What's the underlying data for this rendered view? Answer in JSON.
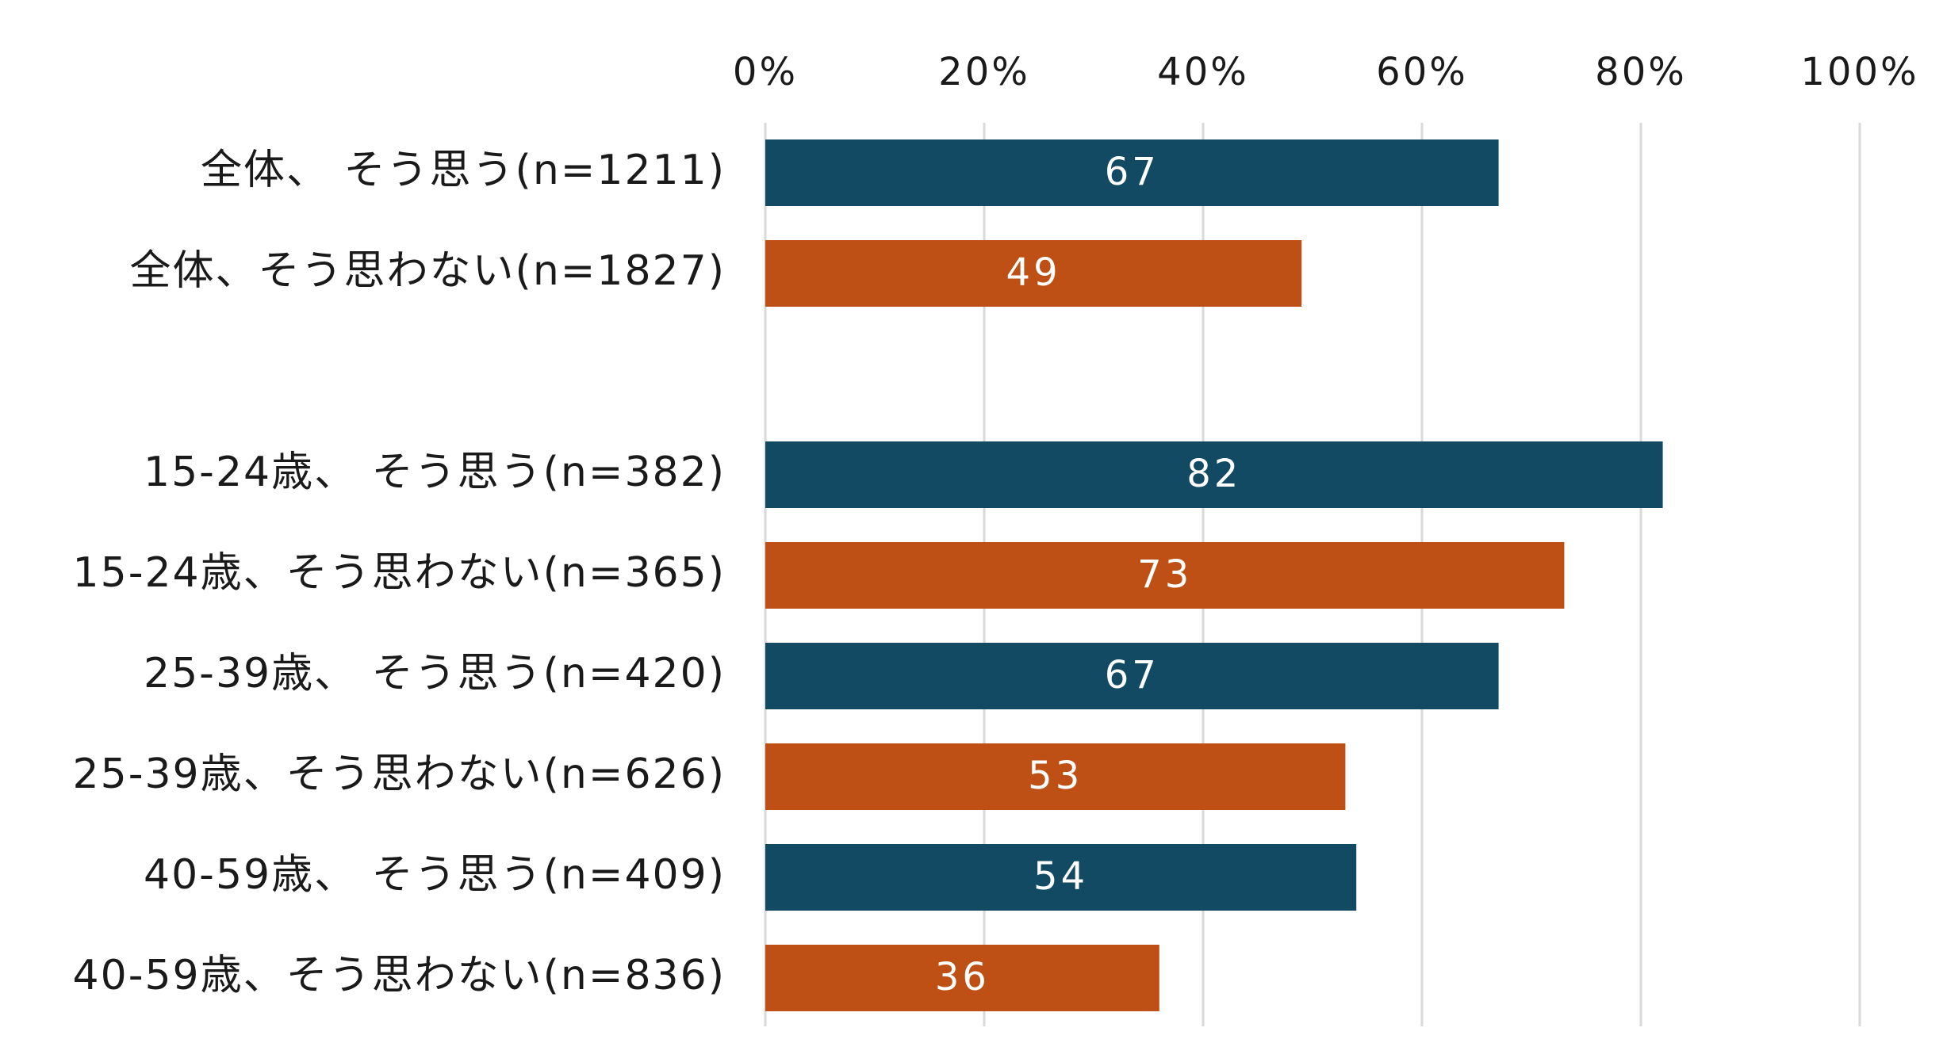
{
  "chart_data": {
    "type": "bar",
    "orientation": "horizontal",
    "xlim": [
      0,
      100
    ],
    "ticks": [
      "0%",
      "20%",
      "40%",
      "60%",
      "80%",
      "100%"
    ],
    "grid": true,
    "legend": "none",
    "colors": {
      "agree": "#134a63",
      "disagree": "#bf5015"
    },
    "bars": [
      {
        "label": "全体、 そう思う(n=1211)",
        "value": 67,
        "group": "agree"
      },
      {
        "label": "全体、そう思わない(n=1827)",
        "value": 49,
        "group": "disagree"
      },
      {
        "label": "",
        "value": null,
        "group": "gap"
      },
      {
        "label": "15-24歳、 そう思う(n=382)",
        "value": 82,
        "group": "agree"
      },
      {
        "label": "15-24歳、そう思わない(n=365)",
        "value": 73,
        "group": "disagree"
      },
      {
        "label": "25-39歳、 そう思う(n=420)",
        "value": 67,
        "group": "agree"
      },
      {
        "label": "25-39歳、そう思わない(n=626)",
        "value": 53,
        "group": "disagree"
      },
      {
        "label": "40-59歳、 そう思う(n=409)",
        "value": 54,
        "group": "agree"
      },
      {
        "label": "40-59歳、そう思わない(n=836)",
        "value": 36,
        "group": "disagree"
      }
    ]
  }
}
